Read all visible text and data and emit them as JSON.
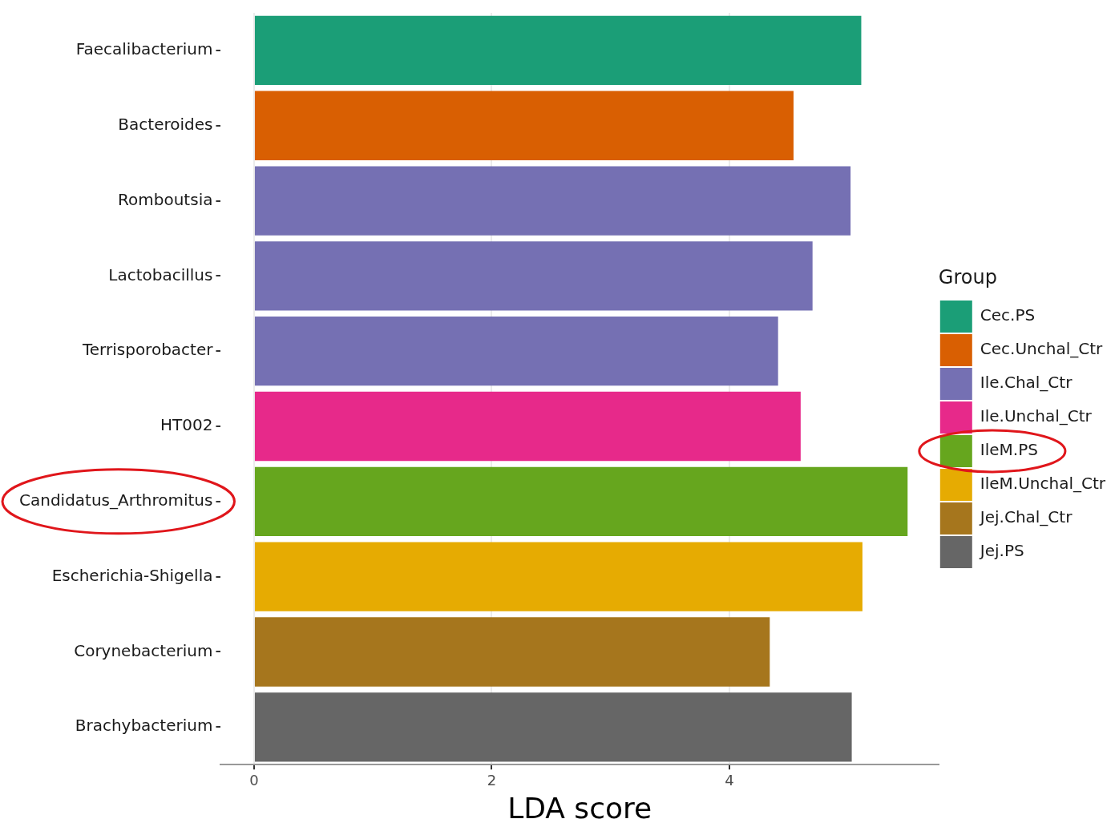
{
  "chart_data": {
    "type": "bar",
    "orientation": "horizontal",
    "stacked": true,
    "categories": [
      "Faecalibacterium",
      "Bacteroides",
      "Romboutsia",
      "Lactobacillus",
      "Terrisporobacter",
      "HT002",
      "Candidatus_Arthromitus",
      "Escherichia-Shigella",
      "Corynebacterium",
      "Brachybacterium"
    ],
    "series": [
      {
        "name": "Cec.PS",
        "color": "#1b9e77",
        "values": [
          5.11,
          null,
          null,
          null,
          null,
          null,
          null,
          null,
          null,
          null
        ]
      },
      {
        "name": "Cec.Unchal_Ctr",
        "color": "#d95f02",
        "values": [
          null,
          4.54,
          null,
          null,
          null,
          null,
          null,
          null,
          null,
          null
        ]
      },
      {
        "name": "Ile.Chal_Ctr",
        "color": "#7570b3",
        "values": [
          null,
          null,
          5.02,
          4.7,
          4.41,
          null,
          null,
          null,
          null,
          null
        ]
      },
      {
        "name": "Ile.Unchal_Ctr",
        "color": "#e7298a",
        "values": [
          null,
          null,
          null,
          null,
          null,
          4.6,
          null,
          null,
          null,
          null
        ]
      },
      {
        "name": "IleM.PS",
        "color": "#66a61e",
        "values": [
          null,
          null,
          null,
          null,
          null,
          null,
          5.5,
          null,
          null,
          null
        ]
      },
      {
        "name": "IleM.Unchal_Ctr",
        "color": "#e6ab02",
        "values": [
          null,
          null,
          null,
          null,
          null,
          null,
          null,
          5.12,
          null,
          null
        ]
      },
      {
        "name": "Jej.Chal_Ctr",
        "color": "#a6761d",
        "values": [
          null,
          null,
          null,
          null,
          null,
          null,
          null,
          null,
          4.34,
          null
        ]
      },
      {
        "name": "Jej.PS",
        "color": "#666666",
        "values": [
          null,
          null,
          null,
          null,
          null,
          null,
          null,
          null,
          null,
          5.03
        ]
      }
    ],
    "xlabel": "LDA score",
    "legend_title": "Group",
    "legend": "right",
    "xlim": [
      -0.28,
      5.76
    ],
    "xticks": [
      0,
      2,
      4
    ],
    "grid": "x"
  }
}
